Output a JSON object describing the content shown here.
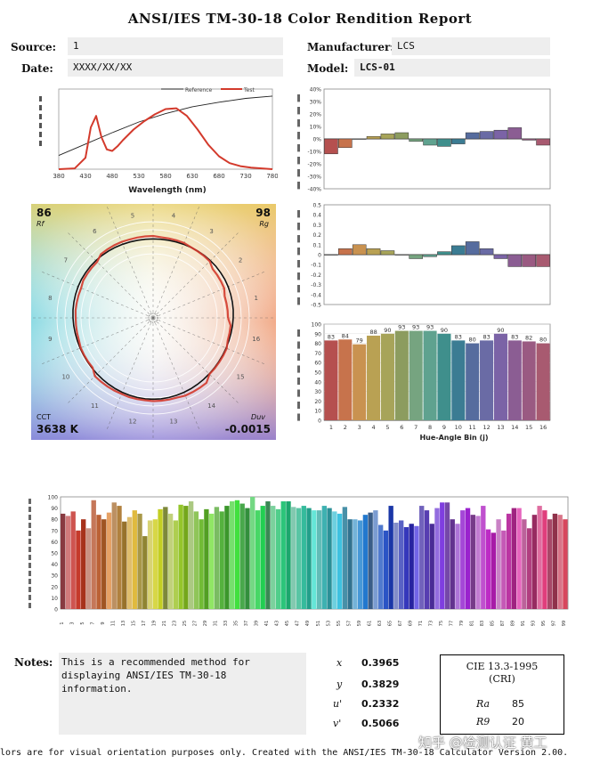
{
  "header": {
    "title": "ANSI/IES TM-30-18 Color Rendition Report",
    "source_label": "Source:",
    "source_value": "1",
    "date_label": "Date:",
    "date_value": "XXXX/XX/XX",
    "manufacturer_label": "Manufacturer:",
    "manufacturer_value": "LCS",
    "model_label": "Model:",
    "model_value": "LCS-01"
  },
  "vector_graphic": {
    "rf": "86",
    "rf_label": "Rf",
    "rg": "98",
    "rg_label": "Rg",
    "cct_label": "CCT",
    "cct_value": "3638 K",
    "duv_label": "Duv",
    "duv_value": "-0.0015",
    "bin_labels": [
      "1",
      "2",
      "3",
      "4",
      "5",
      "6",
      "7",
      "8",
      "9",
      "10",
      "11",
      "12",
      "13",
      "14",
      "15",
      "16"
    ]
  },
  "notes": {
    "label": "Notes:",
    "text_lines": [
      "This is a recommended method for",
      "displaying ANSI/IES TM-30-18",
      "information."
    ]
  },
  "chromaticity": {
    "x_label": "x",
    "x_value": "0.3965",
    "y_label": "y",
    "y_value": "0.3829",
    "u_label": "u'",
    "u_value": "0.2332",
    "v_label": "v'",
    "v_value": "0.5066"
  },
  "cri": {
    "title_line1": "CIE 13.3-1995",
    "title_line2": "(CRI)",
    "ra_label": "Ra",
    "ra_value": "85",
    "r9_label": "R9",
    "r9_value": "20"
  },
  "footer": {
    "text": "lors are for visual orientation purposes only. Created with the ANSI/IES TM-30-18 Calculator Version 2.00."
  },
  "watermark": "知乎 @检测认证 黄工",
  "colors": {
    "test_line": "#d33a2c",
    "reference_line": "#222222",
    "field_bg": "#eeeeee"
  },
  "chart_data": [
    {
      "id": "spd",
      "type": "line",
      "xlabel": "Wavelength (nm)",
      "xlim": [
        380,
        780
      ],
      "x_ticks": [
        380,
        430,
        480,
        530,
        580,
        630,
        680,
        730,
        780
      ],
      "legend": [
        "Reference",
        "Test"
      ],
      "series": [
        {
          "name": "Reference",
          "x": [
            380,
            430,
            480,
            530,
            580,
            630,
            680,
            730,
            780
          ],
          "values": [
            0.18,
            0.33,
            0.48,
            0.62,
            0.73,
            0.82,
            0.88,
            0.93,
            0.96
          ]
        },
        {
          "name": "Test",
          "x": [
            380,
            410,
            430,
            440,
            450,
            460,
            470,
            480,
            490,
            500,
            520,
            540,
            560,
            580,
            600,
            620,
            640,
            660,
            680,
            700,
            720,
            740,
            760,
            780
          ],
          "values": [
            0.0,
            0.01,
            0.15,
            0.55,
            0.7,
            0.42,
            0.26,
            0.24,
            0.3,
            0.38,
            0.52,
            0.63,
            0.72,
            0.79,
            0.8,
            0.7,
            0.52,
            0.32,
            0.17,
            0.08,
            0.04,
            0.02,
            0.01,
            0.0
          ]
        }
      ]
    },
    {
      "id": "chroma_shift",
      "type": "bar",
      "ylim": [
        -0.4,
        0.4
      ],
      "y_ticks": [
        "40%",
        "30%",
        "20%",
        "10%",
        "0%",
        "-10%",
        "-20%",
        "-30%",
        "-40%"
      ],
      "categories": [
        "1",
        "2",
        "3",
        "4",
        "5",
        "6",
        "7",
        "8",
        "9",
        "10",
        "11",
        "12",
        "13",
        "14",
        "15",
        "16"
      ],
      "values": [
        -0.12,
        -0.07,
        0.0,
        0.02,
        0.04,
        0.05,
        -0.02,
        -0.05,
        -0.06,
        -0.04,
        0.05,
        0.06,
        0.07,
        0.09,
        -0.01,
        -0.05
      ]
    },
    {
      "id": "hue_shift",
      "type": "bar",
      "ylim": [
        -0.5,
        0.5
      ],
      "y_ticks": [
        "0.5",
        "0.4",
        "0.3",
        "0.2",
        "0.1",
        "0",
        "-0.1",
        "-0.2",
        "-0.3",
        "-0.4",
        "-0.5"
      ],
      "categories": [
        "1",
        "2",
        "3",
        "4",
        "5",
        "6",
        "7",
        "8",
        "9",
        "10",
        "11",
        "12",
        "13",
        "14",
        "15",
        "16"
      ],
      "values": [
        0.0,
        0.06,
        0.1,
        0.06,
        0.04,
        0.0,
        -0.04,
        -0.02,
        0.03,
        0.09,
        0.13,
        0.06,
        -0.04,
        -0.12,
        -0.12,
        -0.12
      ]
    },
    {
      "id": "fidelity_by_bin",
      "type": "bar",
      "xlabel": "Hue-Angle Bin (j)",
      "ylim": [
        0,
        100
      ],
      "y_ticks": [
        "100",
        "90",
        "80",
        "70",
        "60",
        "50",
        "40",
        "30",
        "20",
        "10",
        "0"
      ],
      "categories": [
        "1",
        "2",
        "3",
        "4",
        "5",
        "6",
        "7",
        "8",
        "9",
        "10",
        "11",
        "12",
        "13",
        "14",
        "15",
        "16"
      ],
      "values": [
        83,
        84,
        79,
        88,
        90,
        93,
        93,
        93,
        90,
        83,
        80,
        83,
        90,
        83,
        82,
        80
      ]
    },
    {
      "id": "fidelity_by_sample",
      "type": "bar",
      "ylim": [
        0,
        100
      ],
      "y_ticks": [
        "100",
        "90",
        "80",
        "70",
        "60",
        "50",
        "40",
        "30",
        "20",
        "10",
        "0"
      ],
      "x": [
        "1",
        "2",
        "3",
        "4",
        "5",
        "6",
        "7",
        "8",
        "9",
        "10",
        "11",
        "12",
        "13",
        "14",
        "15",
        "16",
        "17",
        "18",
        "19",
        "20",
        "21",
        "22",
        "23",
        "24",
        "25",
        "26",
        "27",
        "28",
        "29",
        "30",
        "31",
        "32",
        "33",
        "34",
        "35",
        "36",
        "37",
        "38",
        "39",
        "40",
        "41",
        "42",
        "43",
        "44",
        "45",
        "46",
        "47",
        "48",
        "49",
        "50",
        "51",
        "52",
        "53",
        "54",
        "55",
        "56",
        "57",
        "58",
        "59",
        "60",
        "61",
        "62",
        "63",
        "64",
        "65",
        "66",
        "67",
        "68",
        "69",
        "70",
        "71",
        "72",
        "73",
        "74",
        "75",
        "76",
        "77",
        "78",
        "79",
        "80",
        "81",
        "82",
        "83",
        "84",
        "85",
        "86",
        "87",
        "88",
        "89",
        "90",
        "91",
        "92",
        "93",
        "94",
        "95",
        "96",
        "97",
        "98",
        "99"
      ],
      "values": [
        85,
        83,
        87,
        70,
        80,
        72,
        97,
        84,
        80,
        86,
        95,
        92,
        78,
        82,
        88,
        85,
        65,
        79,
        80,
        89,
        91,
        85,
        79,
        93,
        92,
        96,
        87,
        80,
        89,
        85,
        91,
        87,
        92,
        96,
        97,
        94,
        90,
        100,
        88,
        92,
        96,
        92,
        89,
        96,
        96,
        91,
        90,
        92,
        90,
        88,
        88,
        92,
        90,
        87,
        85,
        91,
        80,
        80,
        79,
        84,
        86,
        88,
        75,
        70,
        92,
        77,
        79,
        73,
        76,
        74,
        92,
        88,
        76,
        90,
        95,
        95,
        80,
        76,
        88,
        90,
        84,
        83,
        92,
        71,
        68,
        80,
        70,
        85,
        90,
        90,
        80,
        72,
        84,
        92,
        88,
        80,
        85,
        84,
        80
      ]
    }
  ]
}
